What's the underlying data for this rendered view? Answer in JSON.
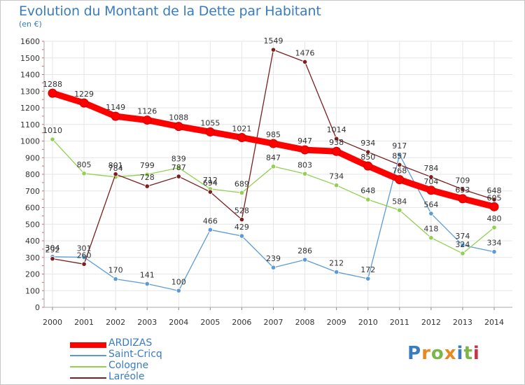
{
  "title": "Evolution du Montant de la Dette par Habitant",
  "unit": "(en €)",
  "logo": {
    "letters": [
      "P",
      "r",
      "o",
      "x",
      "i",
      "t",
      "i"
    ],
    "colors": [
      "#3a7cbf",
      "#e8881e",
      "#7ab648",
      "#e8881e",
      "#3a7cbf",
      "#7ab648",
      "#c8324a"
    ]
  },
  "chart_data": {
    "type": "line",
    "x": [
      "2000",
      "2001",
      "2002",
      "2003",
      "2004",
      "2005",
      "2006",
      "2007",
      "2008",
      "2009",
      "2010",
      "2011",
      "2012",
      "2013",
      "2014"
    ],
    "ylim": [
      0,
      1600
    ],
    "yticks": [
      "0",
      "100",
      "200",
      "300",
      "400",
      "500",
      "600",
      "700",
      "800",
      "900",
      "1000",
      "1100",
      "1200",
      "1300",
      "1400",
      "1500",
      "1600"
    ],
    "grid": true,
    "legend_position": "bottom-left",
    "series": [
      {
        "name": "ARDIZAS",
        "color": "#ff0000",
        "values": [
          1288,
          1229,
          1149,
          1126,
          1088,
          1055,
          1021,
          985,
          947,
          938,
          850,
          768,
          704,
          653,
          605
        ],
        "labels": [
          "1288",
          "1229",
          "1149",
          "1126",
          "1088",
          "1055",
          "1021",
          "985",
          "947",
          "938",
          "850",
          "768",
          "704",
          "653",
          "605"
        ]
      },
      {
        "name": "Saint-Cricq",
        "color": "#5b9bd5",
        "values": [
          304,
          301,
          170,
          141,
          100,
          466,
          429,
          239,
          286,
          212,
          172,
          917,
          564,
          374,
          334
        ],
        "labels": [
          "304",
          "301",
          "170",
          "141",
          "100",
          "466",
          "429",
          "239",
          "286",
          "212",
          "172",
          "917",
          "564",
          "374",
          "334"
        ]
      },
      {
        "name": "Cologne",
        "color": "#92d050",
        "values": [
          1010,
          805,
          784,
          799,
          839,
          712,
          689,
          847,
          803,
          734,
          648,
          584,
          418,
          324,
          480
        ],
        "labels": [
          "1010",
          "805",
          "784",
          "799",
          "839",
          "712",
          "689",
          "847",
          "803",
          "734",
          "648",
          "584",
          "418",
          "324",
          "480"
        ]
      },
      {
        "name": "Laréole",
        "color": "#7b1f1f",
        "values": [
          292,
          260,
          801,
          728,
          787,
          694,
          528,
          1549,
          1476,
          1014,
          934,
          857,
          784,
          709,
          648
        ],
        "labels": [
          "292",
          "260",
          "801",
          "728",
          "787",
          "694",
          "528",
          "1549",
          "1476",
          "1014",
          "934",
          "857",
          "784",
          "709",
          "648"
        ]
      }
    ]
  }
}
